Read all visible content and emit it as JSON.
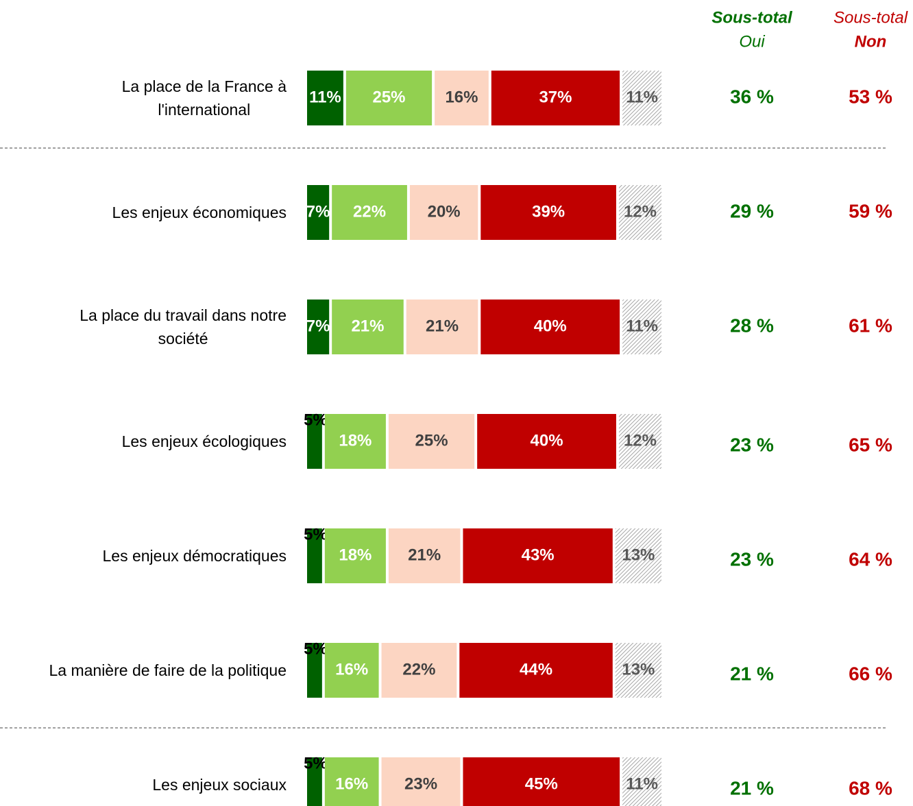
{
  "chart_data": {
    "type": "stacked-bar-horizontal",
    "categories": [
      "La place de la France à\nl'international",
      "Les enjeux économiques",
      "La place du travail dans notre\nsociété",
      "Les enjeux écologiques",
      "Les enjeux démocratiques",
      "La manière de faire de la politique",
      "Les enjeux sociaux"
    ],
    "xlim": [
      0,
      100
    ],
    "series": [
      {
        "color": "#006100",
        "label_color": "#ffffff",
        "values": [
          11,
          7,
          7,
          5,
          5,
          5,
          5
        ],
        "value_labels": [
          "11%",
          "7%",
          "7%",
          "5%",
          "5%",
          "5%",
          "5%"
        ]
      },
      {
        "color": "#92d050",
        "label_color": "#ffffff",
        "values": [
          25,
          22,
          21,
          18,
          18,
          16,
          16
        ],
        "value_labels": [
          "25%",
          "22%",
          "21%",
          "18%",
          "18%",
          "16%",
          "16%"
        ]
      },
      {
        "color": "#fcd5c2",
        "label_color": "#404040",
        "values": [
          16,
          20,
          21,
          25,
          21,
          22,
          23
        ],
        "value_labels": [
          "16%",
          "20%",
          "21%",
          "25%",
          "21%",
          "22%",
          "23%"
        ]
      },
      {
        "color": "#c00000",
        "label_color": "#ffffff",
        "values": [
          37,
          39,
          40,
          40,
          43,
          44,
          45
        ],
        "value_labels": [
          "37%",
          "39%",
          "40%",
          "40%",
          "43%",
          "44%",
          "45%"
        ]
      },
      {
        "color": "hatch",
        "label_color": "#595959",
        "values": [
          11,
          12,
          11,
          12,
          13,
          13,
          11
        ],
        "value_labels": [
          "11%",
          "12%",
          "11%",
          "12%",
          "13%",
          "13%",
          "11%"
        ]
      }
    ],
    "subtotals": [
      {
        "header": [
          "Sous-total",
          "Oui"
        ],
        "bold_line": 0,
        "color": "#007000",
        "values": [
          36,
          29,
          28,
          23,
          23,
          21,
          21
        ],
        "value_labels": [
          "36 %",
          "29 %",
          "28 %",
          "23 %",
          "23 %",
          "21 %",
          "21 %"
        ]
      },
      {
        "header": [
          "Sous-total",
          "Non"
        ],
        "bold_line": 1,
        "color": "#c00000",
        "values": [
          53,
          59,
          61,
          65,
          64,
          66,
          68
        ],
        "value_labels": [
          "53 %",
          "59 %",
          "61 %",
          "65 %",
          "64 %",
          "66 %",
          "68 %"
        ]
      }
    ]
  }
}
